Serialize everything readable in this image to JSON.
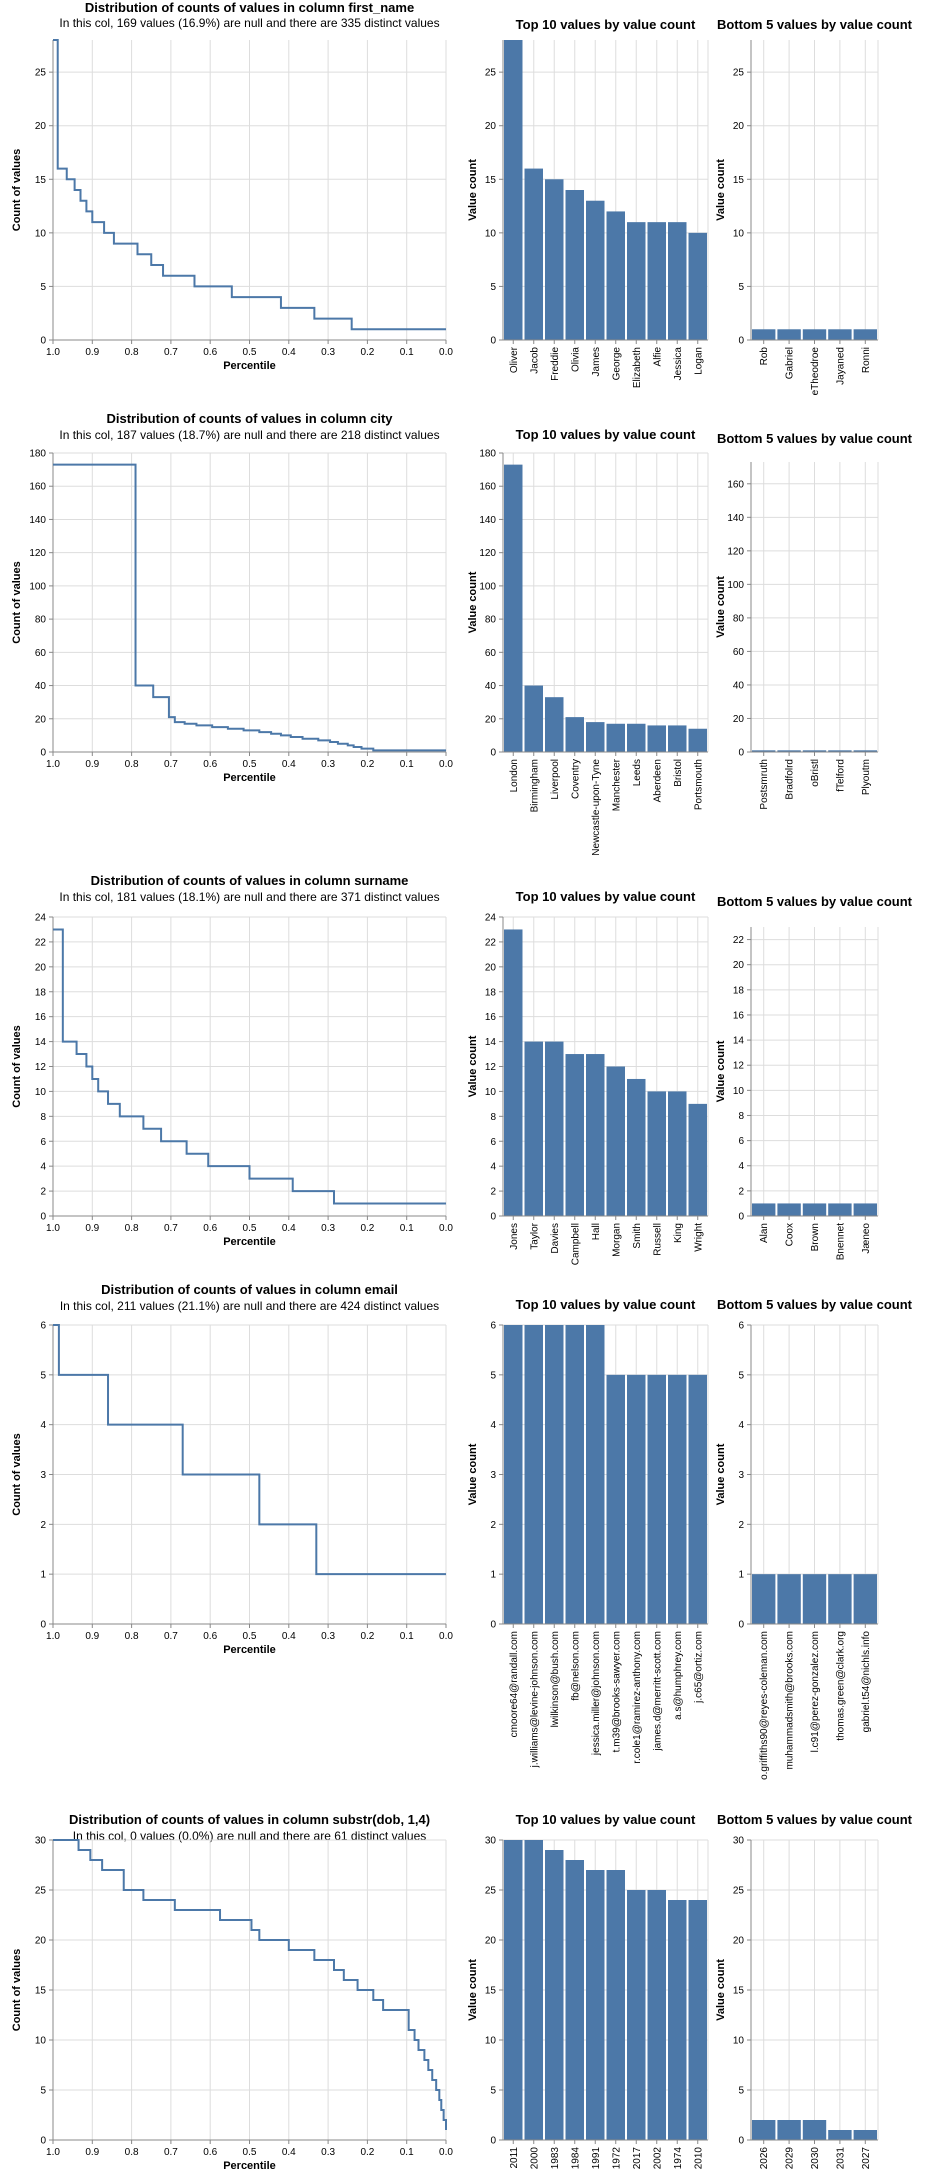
{
  "chart_data": [
    {
      "name": "first_name",
      "distribution": {
        "type": "line",
        "title": "Distribution of counts of values in column first_name",
        "subtitle": "In this col, 169 values (16.9%) are null and there are 335 distinct values",
        "xlabel": "Percentile",
        "ylabel": "Count of values",
        "xlim": [
          1.0,
          0.0
        ],
        "ylim": [
          0,
          28
        ],
        "yticks": [
          0,
          5,
          10,
          15,
          20,
          25
        ],
        "xticks": [
          1.0,
          0.9,
          0.8,
          0.7,
          0.6,
          0.5,
          0.4,
          0.3,
          0.2,
          0.1,
          0.0
        ],
        "steps": [
          [
            1.0,
            28
          ],
          [
            0.988,
            16
          ],
          [
            0.965,
            15
          ],
          [
            0.945,
            14
          ],
          [
            0.93,
            13
          ],
          [
            0.915,
            12
          ],
          [
            0.9,
            11
          ],
          [
            0.87,
            10
          ],
          [
            0.845,
            9
          ],
          [
            0.785,
            8
          ],
          [
            0.75,
            7
          ],
          [
            0.72,
            6
          ],
          [
            0.64,
            5
          ],
          [
            0.545,
            4
          ],
          [
            0.42,
            3
          ],
          [
            0.335,
            2
          ],
          [
            0.24,
            1
          ],
          [
            0.0,
            1
          ]
        ]
      },
      "top": {
        "type": "bar",
        "title": "Top 10 values by value count",
        "ylabel": "Value count",
        "ylim": [
          0,
          28
        ],
        "yticks": [
          0,
          5,
          10,
          15,
          20,
          25
        ],
        "categories": [
          "Oliver",
          "Jacob",
          "Freddie",
          "Olivia",
          "James",
          "George",
          "Elizabeth",
          "Alfie",
          "Jessica",
          "Logan"
        ],
        "values": [
          28,
          16,
          15,
          14,
          13,
          12,
          11,
          11,
          11,
          10
        ]
      },
      "bottom": {
        "type": "bar",
        "title": "Bottom 5 values by value count",
        "ylabel": "Value count",
        "ylim": [
          0,
          28
        ],
        "yticks": [
          0,
          5,
          10,
          15,
          20,
          25
        ],
        "categories": [
          "Rob",
          "Gabriel",
          "eTheodroe",
          "Jayaned",
          "Ronni"
        ],
        "values": [
          1,
          1,
          1,
          1,
          1
        ]
      }
    },
    {
      "name": "city",
      "distribution": {
        "type": "line",
        "title": "Distribution of counts of values in column city",
        "subtitle": "In this col, 187 values (18.7%) are null and there are 218 distinct values",
        "xlabel": "Percentile",
        "ylabel": "Count of values",
        "xlim": [
          1.0,
          0.0
        ],
        "ylim": [
          0,
          180
        ],
        "yticks": [
          0,
          20,
          40,
          60,
          80,
          100,
          120,
          140,
          160,
          180
        ],
        "xticks": [
          1.0,
          0.9,
          0.8,
          0.7,
          0.6,
          0.5,
          0.4,
          0.3,
          0.2,
          0.1,
          0.0
        ],
        "steps": [
          [
            1.0,
            173
          ],
          [
            0.79,
            40
          ],
          [
            0.745,
            33
          ],
          [
            0.705,
            21
          ],
          [
            0.69,
            18
          ],
          [
            0.665,
            17
          ],
          [
            0.635,
            16
          ],
          [
            0.595,
            15
          ],
          [
            0.555,
            14
          ],
          [
            0.515,
            13
          ],
          [
            0.475,
            12
          ],
          [
            0.445,
            11
          ],
          [
            0.42,
            10
          ],
          [
            0.395,
            9
          ],
          [
            0.365,
            8
          ],
          [
            0.325,
            7
          ],
          [
            0.295,
            6
          ],
          [
            0.275,
            5
          ],
          [
            0.25,
            4
          ],
          [
            0.235,
            3
          ],
          [
            0.215,
            2
          ],
          [
            0.185,
            1
          ],
          [
            0.0,
            1
          ]
        ]
      },
      "top": {
        "type": "bar",
        "title": "Top 10 values by value count",
        "ylabel": "Value count",
        "ylim": [
          0,
          180
        ],
        "yticks": [
          0,
          20,
          40,
          60,
          80,
          100,
          120,
          140,
          160,
          180
        ],
        "categories": [
          "London",
          "Birmingham",
          "Liverpool",
          "Coventry",
          "Newcastle-upon-Tyne",
          "Manchester",
          "Leeds",
          "Aberdeen",
          "Bristol",
          "Portsmouth"
        ],
        "values": [
          173,
          40,
          33,
          21,
          18,
          17,
          17,
          16,
          16,
          14
        ]
      },
      "bottom": {
        "type": "bar",
        "title": "Bottom 5 values by value count",
        "ylabel": "Value count",
        "ylim": [
          0,
          173
        ],
        "yticks": [
          0,
          20,
          40,
          60,
          80,
          100,
          120,
          140,
          160
        ],
        "categories": [
          "Postsmruth",
          "Bradfolrd",
          "oBristl",
          "fTelford",
          "Plyoutm"
        ],
        "values": [
          1,
          1,
          1,
          1,
          1
        ]
      }
    },
    {
      "name": "surname",
      "distribution": {
        "type": "line",
        "title": "Distribution of counts of values in column surname",
        "subtitle": "In this col, 181 values (18.1%) are null and there are 371 distinct values",
        "xlabel": "Percentile",
        "ylabel": "Count of values",
        "xlim": [
          1.0,
          0.0
        ],
        "ylim": [
          0,
          24
        ],
        "yticks": [
          0,
          2,
          4,
          6,
          8,
          10,
          12,
          14,
          16,
          18,
          20,
          22,
          24
        ],
        "xticks": [
          1.0,
          0.9,
          0.8,
          0.7,
          0.6,
          0.5,
          0.4,
          0.3,
          0.2,
          0.1,
          0.0
        ],
        "steps": [
          [
            1.0,
            23
          ],
          [
            0.975,
            14
          ],
          [
            0.94,
            13
          ],
          [
            0.915,
            12
          ],
          [
            0.9,
            11
          ],
          [
            0.885,
            10
          ],
          [
            0.86,
            9
          ],
          [
            0.83,
            8
          ],
          [
            0.77,
            7
          ],
          [
            0.725,
            6
          ],
          [
            0.66,
            5
          ],
          [
            0.605,
            4
          ],
          [
            0.5,
            3
          ],
          [
            0.39,
            2
          ],
          [
            0.285,
            1
          ],
          [
            0.0,
            1
          ]
        ]
      },
      "top": {
        "type": "bar",
        "title": "Top 10 values by value count",
        "ylabel": "Value count",
        "ylim": [
          0,
          24
        ],
        "yticks": [
          0,
          2,
          4,
          6,
          8,
          10,
          12,
          14,
          16,
          18,
          20,
          22,
          24
        ],
        "categories": [
          "Jones",
          "Taylor",
          "Davies",
          "Campbell",
          "Hall",
          "Morgan",
          "Smith",
          "Russell",
          "King",
          "Wright"
        ],
        "values": [
          23,
          14,
          14,
          13,
          13,
          12,
          11,
          10,
          10,
          9
        ]
      },
      "bottom": {
        "type": "bar",
        "title": "Bottom 5 values by value count",
        "ylabel": "Value count",
        "ylim": [
          0,
          23
        ],
        "yticks": [
          0,
          2,
          4,
          6,
          8,
          10,
          12,
          14,
          16,
          18,
          20,
          22
        ],
        "categories": [
          "Alan",
          "Coox",
          "Brown",
          "Bnennet",
          "Jæneo"
        ],
        "values": [
          1,
          1,
          1,
          1,
          1
        ]
      }
    },
    {
      "name": "email",
      "distribution": {
        "type": "line",
        "title": "Distribution of counts of values in column email",
        "subtitle": "In this col, 211 values (21.1%) are null and there are 424 distinct values",
        "xlabel": "Percentile",
        "ylabel": "Count of values",
        "xlim": [
          1.0,
          0.0
        ],
        "ylim": [
          0,
          6
        ],
        "yticks": [
          0,
          1,
          2,
          3,
          4,
          5,
          6
        ],
        "xticks": [
          1.0,
          0.9,
          0.8,
          0.7,
          0.6,
          0.5,
          0.4,
          0.3,
          0.2,
          0.1,
          0.0
        ],
        "steps": [
          [
            1.0,
            6
          ],
          [
            0.985,
            5
          ],
          [
            0.86,
            4
          ],
          [
            0.67,
            3
          ],
          [
            0.475,
            2
          ],
          [
            0.33,
            1
          ],
          [
            0.0,
            1
          ]
        ]
      },
      "top": {
        "type": "bar",
        "title": "Top 10 values by value count",
        "ylabel": "Value count",
        "ylim": [
          0,
          6
        ],
        "yticks": [
          0,
          1,
          2,
          3,
          4,
          5,
          6
        ],
        "categories": [
          "cmoore64@randall.com",
          "j.williams@levine-johnson.com",
          "lwilkinson@bush.com",
          "fb@nelson.com",
          "jessica.miller@johnson.com",
          "t.m39@brooks-sawyer.com",
          "r.cole1@ramirez-anthony.com",
          "james.d@merritt-scott.com",
          "a.s@humphrey.com",
          "j.c65@ortiz.com"
        ],
        "values": [
          6,
          6,
          6,
          6,
          6,
          5,
          5,
          5,
          5,
          5
        ]
      },
      "bottom": {
        "type": "bar",
        "title": "Bottom 5 values by value count",
        "ylabel": "Value count",
        "ylim": [
          0,
          6
        ],
        "yticks": [
          0,
          1,
          2,
          3,
          4,
          5,
          6
        ],
        "categories": [
          "o.griffiths90@reyes-coleman.com",
          "muhammadsmith@brooks.com",
          "l.c91@perez-gonzalez.com",
          "thomas.green@clark.org",
          "gabriel.t54@nichls.info"
        ],
        "values": [
          1,
          1,
          1,
          1,
          1
        ]
      }
    },
    {
      "name": "substr(dob, 1,4)",
      "distribution": {
        "type": "line",
        "title": "Distribution of counts of values in column substr(dob, 1,4)",
        "subtitle": "In this col, 0 values (0.0%) are null and there are 61 distinct values",
        "xlabel": "Percentile",
        "ylabel": "Count of values",
        "xlim": [
          1.0,
          0.0
        ],
        "ylim": [
          0,
          30
        ],
        "yticks": [
          0,
          5,
          10,
          15,
          20,
          25,
          30
        ],
        "xticks": [
          1.0,
          0.9,
          0.8,
          0.7,
          0.6,
          0.5,
          0.4,
          0.3,
          0.2,
          0.1,
          0.0
        ],
        "steps": [
          [
            1.0,
            30
          ],
          [
            0.935,
            29
          ],
          [
            0.905,
            28
          ],
          [
            0.875,
            27
          ],
          [
            0.82,
            25
          ],
          [
            0.77,
            24
          ],
          [
            0.69,
            23
          ],
          [
            0.575,
            22
          ],
          [
            0.495,
            21
          ],
          [
            0.475,
            20
          ],
          [
            0.4,
            19
          ],
          [
            0.335,
            18
          ],
          [
            0.285,
            17
          ],
          [
            0.26,
            16
          ],
          [
            0.225,
            15
          ],
          [
            0.185,
            14
          ],
          [
            0.16,
            13
          ],
          [
            0.095,
            11
          ],
          [
            0.08,
            10
          ],
          [
            0.07,
            9
          ],
          [
            0.055,
            8
          ],
          [
            0.045,
            7
          ],
          [
            0.035,
            6
          ],
          [
            0.025,
            5
          ],
          [
            0.017,
            4
          ],
          [
            0.012,
            3
          ],
          [
            0.006,
            2
          ],
          [
            0.0,
            1
          ]
        ]
      },
      "top": {
        "type": "bar",
        "title": "Top 10 values by value count",
        "ylabel": "Value count",
        "ylim": [
          0,
          30
        ],
        "yticks": [
          0,
          5,
          10,
          15,
          20,
          25,
          30
        ],
        "categories": [
          "2011",
          "2000",
          "1983",
          "1984",
          "1991",
          "1972",
          "2017",
          "2002",
          "1974",
          "2010"
        ],
        "values": [
          30,
          30,
          29,
          28,
          27,
          27,
          25,
          25,
          24,
          24
        ]
      },
      "bottom": {
        "type": "bar",
        "title": "Bottom 5 values by value count",
        "ylabel": "Value count",
        "ylim": [
          0,
          30
        ],
        "yticks": [
          0,
          5,
          10,
          15,
          20,
          25,
          30
        ],
        "categories": [
          "2026",
          "2029",
          "2030",
          "2031",
          "2027"
        ],
        "values": [
          2,
          2,
          2,
          1,
          1
        ]
      }
    }
  ]
}
